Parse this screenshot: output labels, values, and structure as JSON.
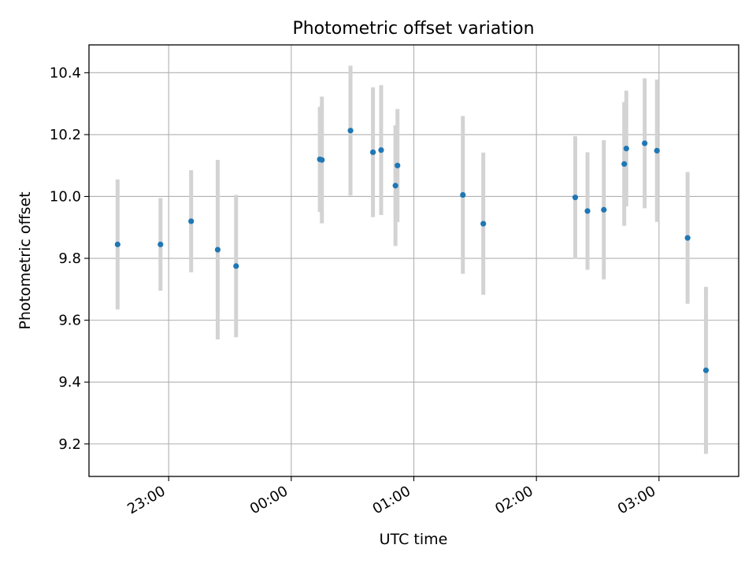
{
  "chart_data": {
    "type": "scatter",
    "title": "Photometric offset variation",
    "xlabel": "UTC time",
    "ylabel": "Photometric offset",
    "grid": true,
    "x_range": [
      "2022-01-01T22:21",
      "2022-01-02T03:39"
    ],
    "ylim": [
      9.095,
      10.49
    ],
    "x_ticks": [
      {
        "t": "2022-01-01T23:00",
        "label": "23:00"
      },
      {
        "t": "2022-01-02T00:00",
        "label": "00:00"
      },
      {
        "t": "2022-01-02T01:00",
        "label": "01:00"
      },
      {
        "t": "2022-01-02T02:00",
        "label": "02:00"
      },
      {
        "t": "2022-01-02T03:00",
        "label": "03:00"
      }
    ],
    "y_ticks": [
      {
        "v": 9.2,
        "label": "9.2"
      },
      {
        "v": 9.4,
        "label": "9.4"
      },
      {
        "v": 9.6,
        "label": "9.6"
      },
      {
        "v": 9.8,
        "label": "9.8"
      },
      {
        "v": 10.0,
        "label": "10.0"
      },
      {
        "v": 10.2,
        "label": "10.2"
      },
      {
        "v": 10.4,
        "label": "10.4"
      }
    ],
    "colors": {
      "marker": "#1f77b4",
      "errorbar": "#d3d3d3",
      "grid": "#b0b0b0"
    },
    "points": [
      {
        "t": "2022-01-01T22:35",
        "y": 9.845,
        "err": 0.21
      },
      {
        "t": "2022-01-01T22:56",
        "y": 9.845,
        "err": 0.15
      },
      {
        "t": "2022-01-01T23:11",
        "y": 9.92,
        "err": 0.165
      },
      {
        "t": "2022-01-01T23:24",
        "y": 9.828,
        "err": 0.29
      },
      {
        "t": "2022-01-01T23:33",
        "y": 9.775,
        "err": 0.23
      },
      {
        "t": "2022-01-02T00:14",
        "y": 10.12,
        "err": 0.17
      },
      {
        "t": "2022-01-02T00:15",
        "y": 10.118,
        "err": 0.205
      },
      {
        "t": "2022-01-02T00:29",
        "y": 10.213,
        "err": 0.21
      },
      {
        "t": "2022-01-02T00:40",
        "y": 10.143,
        "err": 0.21
      },
      {
        "t": "2022-01-02T00:44",
        "y": 10.15,
        "err": 0.21
      },
      {
        "t": "2022-01-02T00:51",
        "y": 10.035,
        "err": 0.195
      },
      {
        "t": "2022-01-02T00:52",
        "y": 10.1,
        "err": 0.183
      },
      {
        "t": "2022-01-02T01:24",
        "y": 10.005,
        "err": 0.255
      },
      {
        "t": "2022-01-02T01:34",
        "y": 9.912,
        "err": 0.23
      },
      {
        "t": "2022-01-02T02:19",
        "y": 9.997,
        "err": 0.198
      },
      {
        "t": "2022-01-02T02:25",
        "y": 9.953,
        "err": 0.19
      },
      {
        "t": "2022-01-02T02:33",
        "y": 9.957,
        "err": 0.225
      },
      {
        "t": "2022-01-02T02:43",
        "y": 10.105,
        "err": 0.2
      },
      {
        "t": "2022-01-02T02:44",
        "y": 10.155,
        "err": 0.187
      },
      {
        "t": "2022-01-02T02:53",
        "y": 10.172,
        "err": 0.21
      },
      {
        "t": "2022-01-02T02:59",
        "y": 10.148,
        "err": 0.23
      },
      {
        "t": "2022-01-02T03:14",
        "y": 9.866,
        "err": 0.213
      },
      {
        "t": "2022-01-02T03:23",
        "y": 9.438,
        "err": 0.27
      }
    ]
  }
}
